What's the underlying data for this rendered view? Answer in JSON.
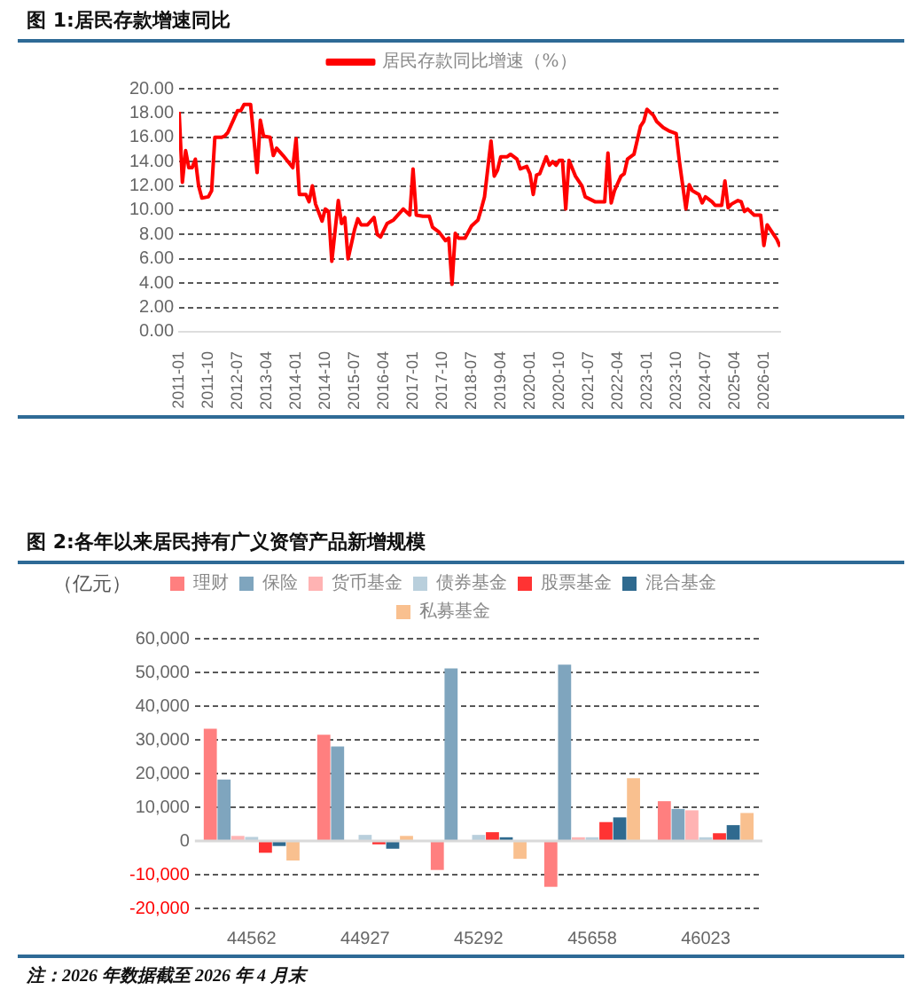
{
  "chart_data": [
    {
      "type": "line",
      "title": "图 1:居民存款增速同比",
      "legend": "top",
      "grid": "y",
      "marker": "none",
      "line_style": "solid",
      "xlim": [
        "2011-01",
        "2026-06"
      ],
      "xticks": [
        "2011-01",
        "2011-10",
        "2012-07",
        "2013-04",
        "2014-01",
        "2014-10",
        "2015-07",
        "2016-04",
        "2017-01",
        "2017-10",
        "2018-07",
        "2019-04",
        "2020-01",
        "2020-10",
        "2021-07",
        "2022-04",
        "2023-01",
        "2023-10",
        "2024-07",
        "2025-04",
        "2026-01"
      ],
      "ylim": [
        0,
        20
      ],
      "yticks": [
        {
          "value": 0,
          "label": "0.00"
        },
        {
          "value": 2,
          "label": "2.00"
        },
        {
          "value": 4,
          "label": "4.00"
        },
        {
          "value": 6,
          "label": "6.00"
        },
        {
          "value": 8,
          "label": "8.00"
        },
        {
          "value": 10,
          "label": "10.00"
        },
        {
          "value": 12,
          "label": "12.00"
        },
        {
          "value": 14,
          "label": "14.00"
        },
        {
          "value": 16,
          "label": "16.00"
        },
        {
          "value": 18,
          "label": "18.00"
        },
        {
          "value": 20,
          "label": "20.00"
        }
      ],
      "series": [
        {
          "name": "居民存款同比增速（%）",
          "color": "#ff0000",
          "x": [
            "2011-01",
            "2011-02",
            "2011-03",
            "2011-04",
            "2011-05",
            "2011-06",
            "2011-07",
            "2011-08",
            "2011-10",
            "2011-11",
            "2011-12",
            "2012-02",
            "2012-03",
            "2012-04",
            "2012-06",
            "2012-07",
            "2012-08",
            "2012-09",
            "2012-11",
            "2013-01",
            "2013-02",
            "2013-03",
            "2013-05",
            "2013-06",
            "2013-07",
            "2013-09",
            "2013-12",
            "2014-01",
            "2014-02",
            "2014-04",
            "2014-05",
            "2014-06",
            "2014-07",
            "2014-09",
            "2014-10",
            "2014-11",
            "2014-12",
            "2015-02",
            "2015-03",
            "2015-04",
            "2015-05",
            "2015-07",
            "2015-08",
            "2015-09",
            "2015-11",
            "2016-01",
            "2016-02",
            "2016-03",
            "2016-05",
            "2016-07",
            "2016-10",
            "2016-12",
            "2017-01",
            "2017-02",
            "2017-04",
            "2017-06",
            "2017-07",
            "2017-09",
            "2017-11",
            "2017-12",
            "2018-01",
            "2018-02",
            "2018-03",
            "2018-05",
            "2018-07",
            "2018-09",
            "2018-10",
            "2018-11",
            "2019-01",
            "2019-02",
            "2019-03",
            "2019-04",
            "2019-06",
            "2019-07",
            "2019-09",
            "2019-10",
            "2019-12",
            "2020-01",
            "2020-02",
            "2020-03",
            "2020-04",
            "2020-06",
            "2020-07",
            "2020-08",
            "2020-09",
            "2020-10",
            "2020-11",
            "2020-12",
            "2021-01",
            "2021-03",
            "2021-05",
            "2021-06",
            "2021-09",
            "2021-11",
            "2021-12",
            "2022-01",
            "2022-02",
            "2022-03",
            "2022-05",
            "2022-06",
            "2022-07",
            "2022-09",
            "2022-11",
            "2022-12",
            "2023-01",
            "2023-03",
            "2023-04",
            "2023-06",
            "2023-08",
            "2023-10",
            "2023-11",
            "2024-01",
            "2024-02",
            "2024-03",
            "2024-05",
            "2024-06",
            "2024-07",
            "2024-09",
            "2024-10",
            "2024-12",
            "2025-01",
            "2025-02",
            "2025-03",
            "2025-05",
            "2025-06",
            "2025-07",
            "2025-08",
            "2025-10",
            "2025-12",
            "2026-01",
            "2026-02",
            "2026-04",
            "2026-05",
            "2026-06"
          ],
          "values": [
            18.1,
            12.3,
            14.9,
            13.5,
            13.5,
            14.2,
            12.0,
            11.0,
            11.1,
            11.6,
            16.0,
            16.0,
            16.1,
            16.4,
            17.6,
            18.2,
            18.2,
            18.7,
            18.7,
            13.1,
            17.4,
            16.1,
            16.0,
            14.5,
            15.1,
            14.5,
            13.5,
            15.9,
            11.3,
            11.3,
            10.7,
            12.0,
            10.5,
            9.1,
            10.1,
            9.9,
            5.8,
            10.8,
            8.9,
            9.4,
            6.0,
            8.4,
            9.3,
            8.8,
            8.8,
            9.4,
            8.0,
            7.8,
            8.9,
            9.2,
            10.1,
            9.6,
            13.4,
            9.6,
            9.5,
            9.5,
            8.6,
            8.2,
            7.5,
            7.7,
            3.9,
            8.1,
            7.7,
            7.7,
            8.7,
            9.2,
            10.1,
            11.1,
            15.7,
            12.8,
            13.3,
            14.4,
            14.4,
            14.6,
            14.2,
            13.4,
            13.6,
            13.0,
            11.3,
            12.9,
            13.0,
            14.4,
            13.7,
            14.0,
            13.7,
            14.1,
            14.1,
            10.1,
            14.1,
            12.8,
            12.0,
            11.1,
            10.7,
            10.7,
            10.7,
            14.7,
            10.6,
            11.6,
            12.8,
            13.0,
            14.2,
            14.6,
            16.9,
            17.3,
            18.3,
            17.8,
            17.3,
            16.8,
            16.5,
            16.3,
            14.0,
            10.1,
            12.1,
            11.6,
            11.3,
            10.6,
            11.1,
            10.7,
            10.4,
            10.4,
            12.4,
            10.2,
            10.5,
            10.8,
            10.7,
            9.9,
            10.1,
            9.6,
            9.6,
            7.1,
            8.8,
            8.0,
            7.6,
            7.0
          ]
        }
      ]
    },
    {
      "type": "bar",
      "title": "图 2:各年以来居民持有广义资管产品新增规模",
      "ylabel": "（亿元）",
      "legend": "top",
      "grid": "y",
      "annotations": [
        "注：2026 年数据截至 2026 年 4 月末"
      ],
      "categories": [
        "44562",
        "44927",
        "45292",
        "45658",
        "46023"
      ],
      "ylim": [
        -20000,
        60000
      ],
      "yticks": [
        {
          "value": -20000,
          "label": "-20,000"
        },
        {
          "value": -10000,
          "label": "-10,000"
        },
        0,
        {
          "value": 10000,
          "label": "10,000"
        },
        {
          "value": 20000,
          "label": "20,000"
        },
        {
          "value": 30000,
          "label": "30,000"
        },
        {
          "value": 40000,
          "label": "40,000"
        },
        {
          "value": 50000,
          "label": "50,000"
        },
        {
          "value": 60000,
          "label": "60,000"
        }
      ],
      "series": [
        {
          "name": "理财",
          "color": "#ff7f7f",
          "values": [
            33300,
            31500,
            -8600,
            -13600,
            11800
          ]
        },
        {
          "name": "保险",
          "color": "#7fa5be",
          "values": [
            18200,
            28000,
            51200,
            52300,
            9500
          ]
        },
        {
          "name": "货币基金",
          "color": "#ffb3b3",
          "values": [
            1500,
            null,
            null,
            1100,
            9100
          ]
        },
        {
          "name": "债券基金",
          "color": "#b9cfdc",
          "values": [
            1200,
            1800,
            1800,
            1100,
            1100
          ]
        },
        {
          "name": "股票基金",
          "color": "#ff3333",
          "values": [
            -3500,
            -1000,
            2600,
            5600,
            2300
          ]
        },
        {
          "name": "混合基金",
          "color": "#2f6a8f",
          "values": [
            -1500,
            -2300,
            1100,
            7000,
            4700
          ]
        },
        {
          "name": "私募基金",
          "color": "#f9c08f",
          "values": [
            -5800,
            1500,
            -5300,
            18600,
            8300
          ]
        }
      ]
    }
  ]
}
